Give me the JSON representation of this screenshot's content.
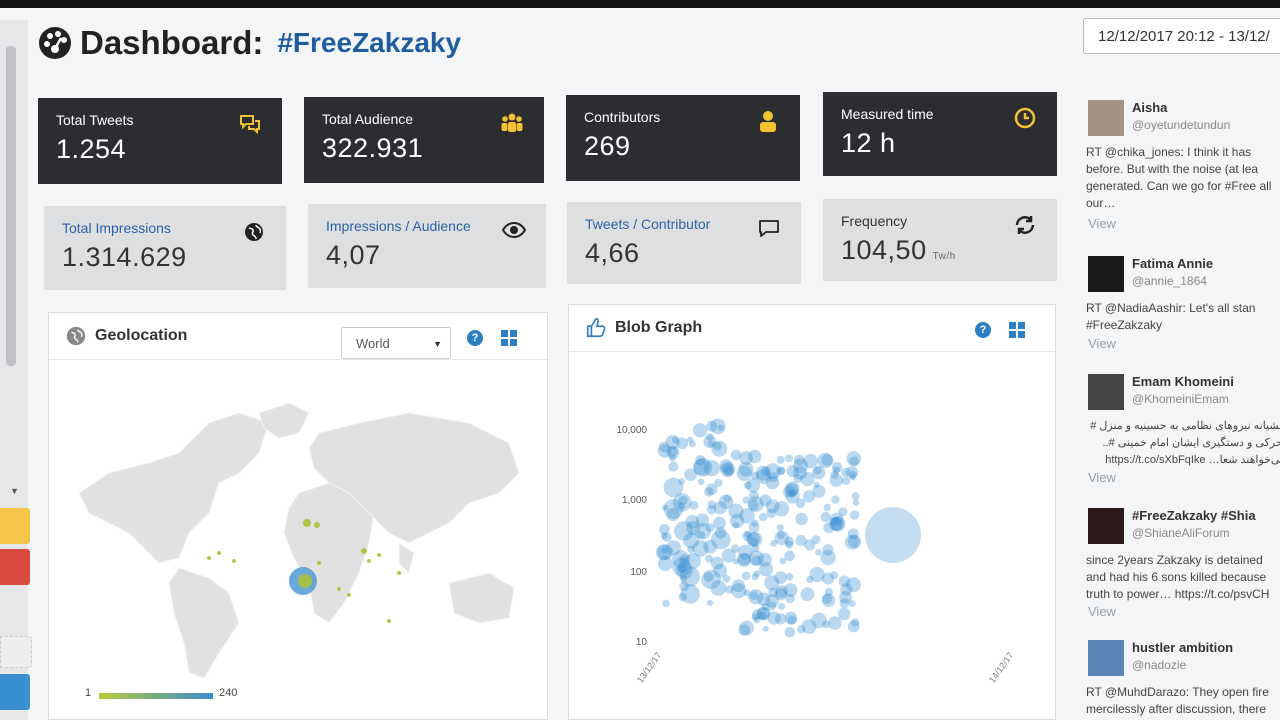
{
  "header": {
    "title": "Dashboard:",
    "hashtag": "#FreeZakzaky",
    "date_range": "12/12/2017 20:12 - 13/12/"
  },
  "stats_dark": [
    {
      "label": "Total Tweets",
      "value": "1.254",
      "icon": "speech-bubbles-icon"
    },
    {
      "label": "Total Audience",
      "value": "322.931",
      "icon": "users-group-icon"
    },
    {
      "label": "Contributors",
      "value": "269",
      "icon": "user-icon"
    },
    {
      "label": "Measured time",
      "value": "12 h",
      "icon": "clock-icon"
    }
  ],
  "stats_light": [
    {
      "label": "Total Impressions",
      "value": "1.314.629",
      "icon": "globe-icon"
    },
    {
      "label": "Impressions / Audience",
      "value": "4,07",
      "icon": "eye-icon"
    },
    {
      "label": "Tweets / Contributor",
      "value": "4,66",
      "icon": "speech-bubble-icon"
    },
    {
      "label": "Frequency",
      "value": "104,50",
      "unit": "Tw/h",
      "icon": "refresh-icon"
    }
  ],
  "geolocation": {
    "title": "Geolocation",
    "region_select": "World",
    "legend_min": "1",
    "legend_max": "240"
  },
  "blob_graph": {
    "title": "Blob Graph",
    "y_ticks": [
      "10,000",
      "1,000",
      "100",
      "10"
    ],
    "x_ticks": [
      "13/12/17",
      "14/12/17"
    ]
  },
  "feed": {
    "view_label": "View",
    "tweets": [
      {
        "name": "Aisha",
        "handle": "@oyetundetundun",
        "text": "RT @chika_jones: I think it has before. But with the noise (at lea generated. Can we go for #Free all our…"
      },
      {
        "name": "Fatima Annie",
        "handle": "@annie_1864",
        "text": "RT @NadiaAashir: Let's all stan #FreeZakzaky"
      },
      {
        "name": "Emam Khomeini",
        "handle": "@KhomeiniEmam",
        "text": "حشیانه نیروهای نظامی به حسینیه و منزل # تحرکی و دستگیری ایشان امام خمینی #.. می‌خواهند شعا… https://t.co/sXbFqIke"
      },
      {
        "name": "#FreeZakzaky #Shia",
        "handle": "@ShianeAliForum",
        "text": "since 2years Zakzaky is detained and had his 6 sons killed because truth to power… https://t.co/psvCH"
      },
      {
        "name": "hustler ambition",
        "handle": "@nadozie",
        "text": "RT @MuhdDarazo: They open fire mercilessly after discussion, there &ar"
      }
    ]
  },
  "colors": {
    "dark_card": "#2b2d30",
    "light_card": "#dedfe1",
    "accent_blue": "#2d7fc4",
    "icon_yellow": "#f2c230",
    "title_blue": "#1f5d9e"
  }
}
